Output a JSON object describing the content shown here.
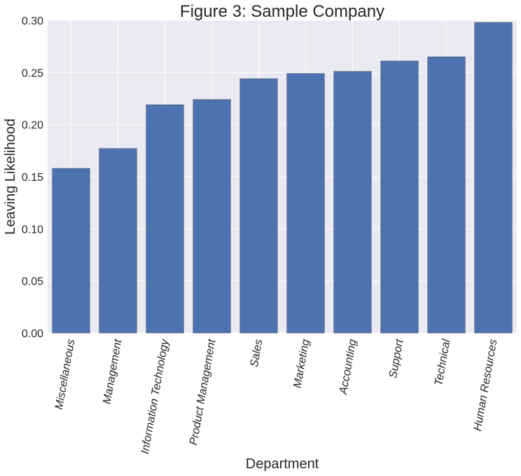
{
  "chart_data": {
    "type": "bar",
    "title": "Figure 3: Sample Company",
    "xlabel": "Department",
    "ylabel": "Leaving Likelihood",
    "categories": [
      "Miscellaneous",
      "Management",
      "Information Technology",
      "Product Management",
      "Sales",
      "Marketing",
      "Accounting",
      "Support",
      "Technical",
      "Human Resources"
    ],
    "values": [
      0.158,
      0.177,
      0.219,
      0.224,
      0.244,
      0.249,
      0.251,
      0.261,
      0.265,
      0.298
    ],
    "ylim": [
      0,
      0.3
    ],
    "yticks": [
      "0.00",
      "0.05",
      "0.10",
      "0.15",
      "0.20",
      "0.25",
      "0.30"
    ],
    "grid": true,
    "colors": {
      "bar": "#4c72b0",
      "background": "#eaeaf2",
      "grid": "#ffffff"
    }
  }
}
